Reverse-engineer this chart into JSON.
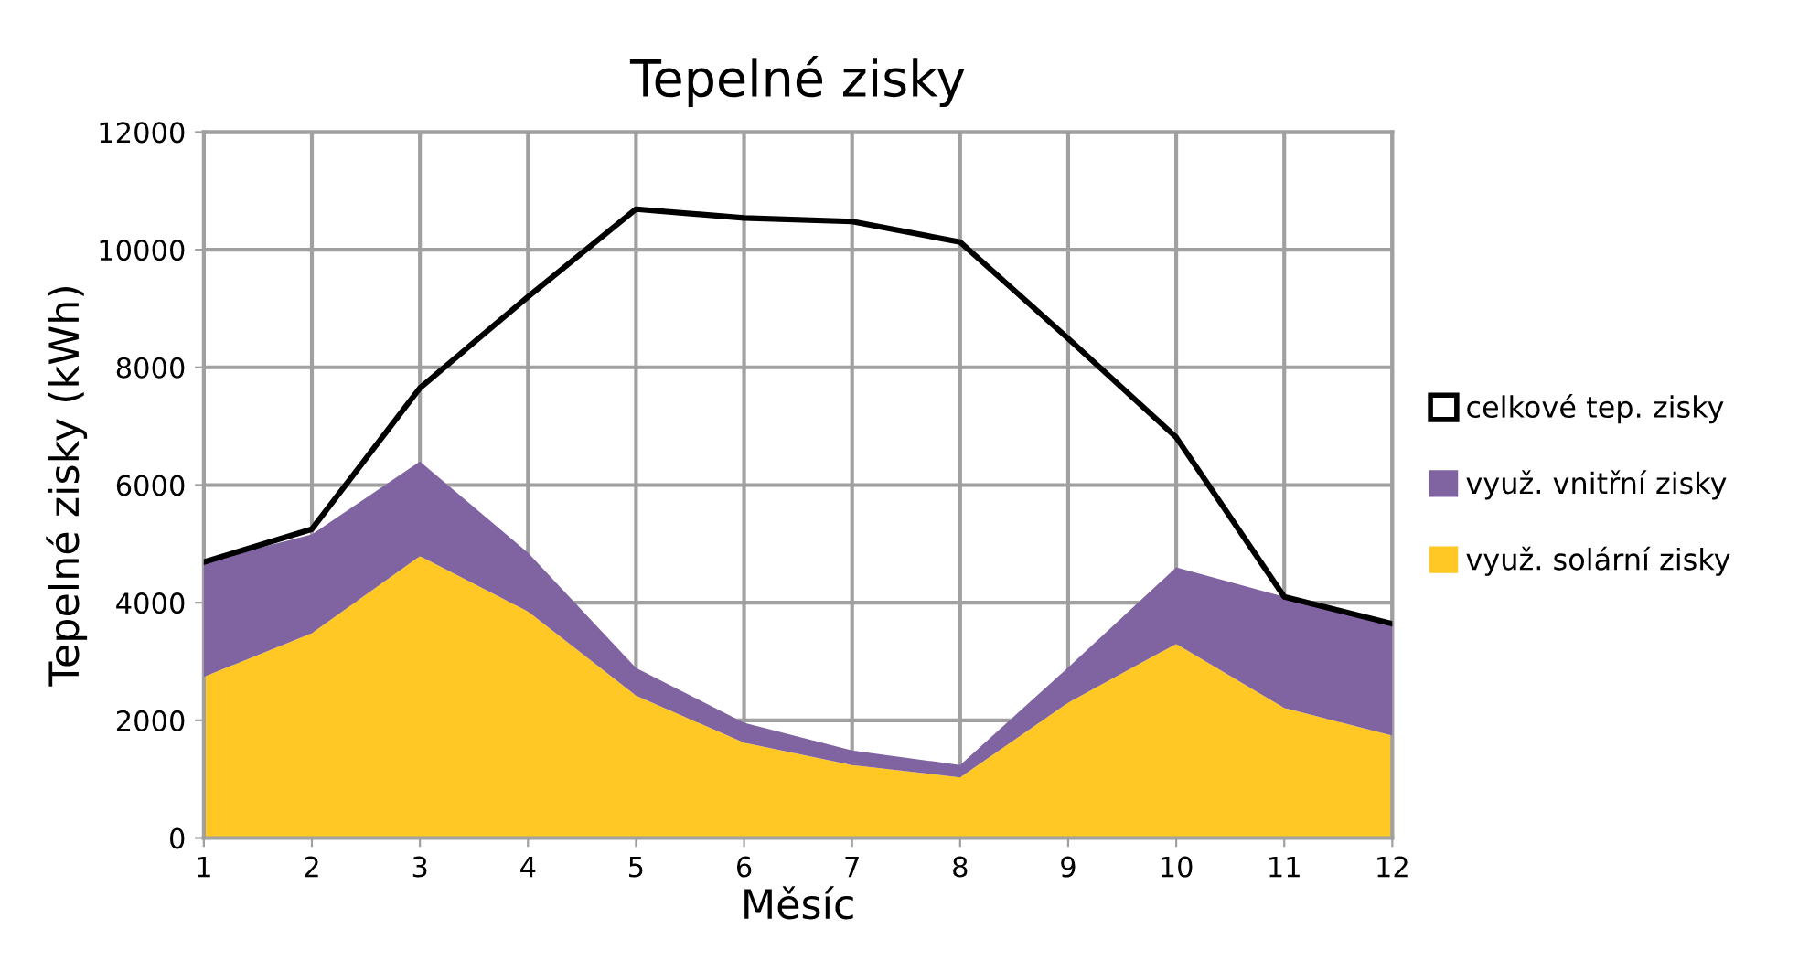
{
  "chart_data": {
    "type": "area",
    "title": "Tepelné zisky",
    "xlabel": "Měsíc",
    "ylabel": "Tepelné zisky (kWh)",
    "x": [
      1,
      2,
      3,
      4,
      5,
      6,
      7,
      8,
      9,
      10,
      11,
      12
    ],
    "stacked": true,
    "series": [
      {
        "name": "využ. solární zisky",
        "color": "#ffc825",
        "values": [
          2740,
          3480,
          4790,
          3850,
          2420,
          1620,
          1240,
          1030,
          2300,
          3300,
          2210,
          1740
        ]
      },
      {
        "name": "využ. vnitřní zisky",
        "color": "#8064a2",
        "values": [
          1950,
          1680,
          1610,
          1000,
          470,
          340,
          250,
          210,
          600,
          1300,
          1890,
          1900
        ]
      },
      {
        "name": "celkové tep. zisky",
        "color": "#000000",
        "type": "line",
        "values": [
          4690,
          5250,
          7650,
          9200,
          10690,
          10540,
          10480,
          10130,
          8490,
          6810,
          4100,
          3640
        ]
      }
    ],
    "xlim": [
      1,
      12
    ],
    "xticks": [
      1,
      2,
      3,
      4,
      5,
      6,
      7,
      8,
      9,
      10,
      11,
      12
    ],
    "ylim": [
      0,
      12000
    ],
    "yticks": [
      0,
      2000,
      4000,
      6000,
      8000,
      10000,
      12000
    ],
    "grid": true,
    "legend": "right"
  }
}
